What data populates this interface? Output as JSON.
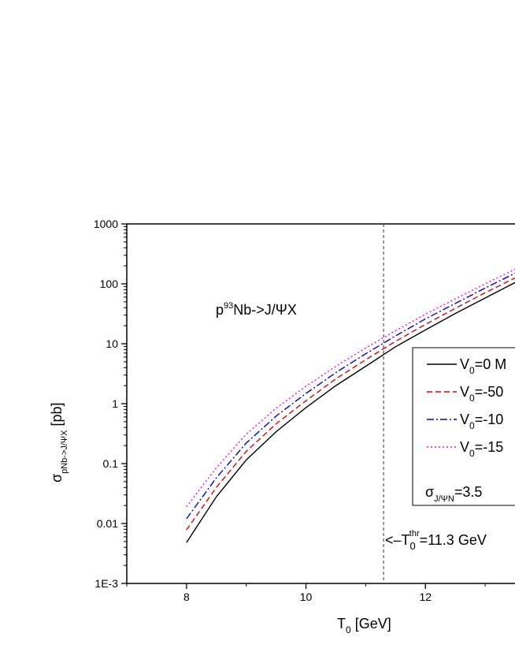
{
  "chart_data": {
    "type": "line",
    "title": "",
    "xlabel": {
      "main": "T",
      "sub": "0",
      "tail": " [GeV]"
    },
    "ylabel": {
      "main": "σ",
      "sub": "pNb->J/ΨX",
      "tail": " [pb]"
    },
    "xlim": [
      7,
      13.5
    ],
    "ylim": [
      0.001,
      1000
    ],
    "yscale": "log",
    "xticks": [
      8,
      10,
      12
    ],
    "xtick_labels": [
      "8",
      "10",
      "12"
    ],
    "yticks": [
      0.001,
      0.01,
      0.1,
      1,
      10,
      100,
      1000
    ],
    "ytick_labels": [
      "1E-3",
      "0.01",
      "0.1",
      "1",
      "10",
      "100",
      "1000"
    ],
    "grid": false,
    "legend_position": "right",
    "reaction_label": {
      "pre": "p",
      "sup": "93",
      "post": "Nb->J/ΨX"
    },
    "threshold": {
      "x": 11.3,
      "label_pre": "<–T",
      "label_sub": "0",
      "label_sup": "thr",
      "label_post": "=11.3 GeV"
    },
    "legend_note": {
      "main": "σ",
      "sub": "J/ΨN",
      "tail": "=3.5"
    },
    "series": [
      {
        "label_pre": "V",
        "label_sub": "0",
        "label_post": "=0 M",
        "color": "#000000",
        "dash": "",
        "x": [
          8,
          8.5,
          9,
          9.5,
          10,
          10.5,
          11,
          11.5,
          12,
          12.5,
          13,
          13.5
        ],
        "y": [
          0.0048,
          0.028,
          0.115,
          0.34,
          0.86,
          2.0,
          4.2,
          8.9,
          17,
          32,
          58,
          105
        ]
      },
      {
        "label_pre": "V",
        "label_sub": "0",
        "label_post": "=-50",
        "color": "#e00000",
        "dash": "7,4",
        "x": [
          8,
          8.5,
          9,
          9.5,
          10,
          10.5,
          11,
          11.5,
          12,
          12.5,
          13,
          13.5
        ],
        "y": [
          0.0078,
          0.04,
          0.16,
          0.46,
          1.12,
          2.6,
          5.4,
          11,
          21,
          39,
          71,
          125
        ]
      },
      {
        "label_pre": "V",
        "label_sub": "0",
        "label_post": "=-10",
        "color": "#0000cc",
        "dash": "9,3,2,3",
        "x": [
          8,
          8.5,
          9,
          9.5,
          10,
          10.5,
          11,
          11.5,
          12,
          12.5,
          13,
          13.5
        ],
        "y": [
          0.012,
          0.058,
          0.22,
          0.62,
          1.48,
          3.3,
          6.8,
          13.5,
          26,
          47,
          85,
          150
        ]
      },
      {
        "label_pre": "V",
        "label_sub": "0",
        "label_post": "=-15",
        "color": "#ff00ff",
        "dash": "2,3",
        "x": [
          8,
          8.5,
          9,
          9.5,
          10,
          10.5,
          11,
          11.5,
          12,
          12.5,
          13,
          13.5
        ],
        "y": [
          0.019,
          0.085,
          0.31,
          0.84,
          1.95,
          4.2,
          8.5,
          16.5,
          31,
          56,
          100,
          175
        ]
      }
    ]
  }
}
